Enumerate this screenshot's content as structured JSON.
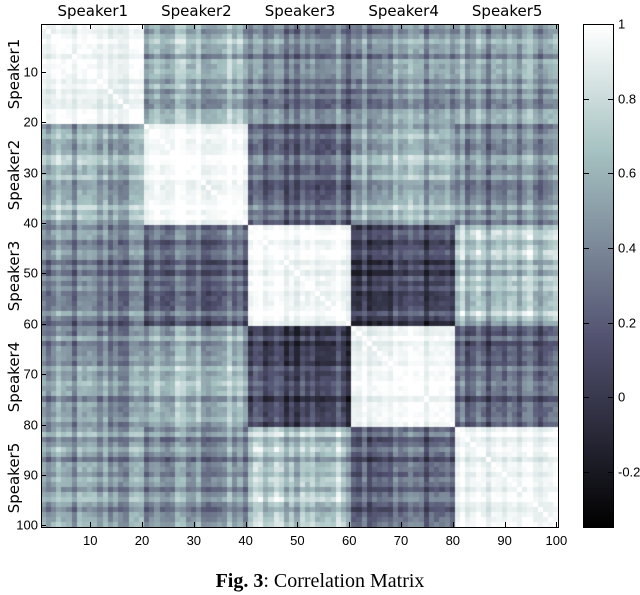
{
  "chart_data": {
    "type": "heatmap",
    "title": "",
    "caption_prefix": "Fig. 3",
    "caption_text": ": Correlation Matrix",
    "xlabel": "",
    "ylabel": "",
    "matrix_size": 100,
    "groups": [
      "Speaker1",
      "Speaker2",
      "Speaker3",
      "Speaker4",
      "Speaker5"
    ],
    "group_size": 20,
    "x_ticks": [
      10,
      20,
      30,
      40,
      50,
      60,
      70,
      80,
      90,
      100
    ],
    "y_ticks": [
      10,
      20,
      30,
      40,
      50,
      60,
      70,
      80,
      90,
      100
    ],
    "block_mean_correlation": [
      [
        0.92,
        0.55,
        0.35,
        0.45,
        0.45
      ],
      [
        0.55,
        0.97,
        0.25,
        0.6,
        0.4
      ],
      [
        0.35,
        0.25,
        0.96,
        0.1,
        0.65
      ],
      [
        0.45,
        0.6,
        0.1,
        0.97,
        0.25
      ],
      [
        0.45,
        0.4,
        0.65,
        0.25,
        0.92
      ]
    ],
    "colorbar": {
      "range": [
        -0.35,
        1.0
      ],
      "ticks": [
        "1",
        "0.8",
        "0.6",
        "0.4",
        "0.2",
        "0",
        "-0.2"
      ],
      "tick_values": [
        1,
        0.8,
        0.6,
        0.4,
        0.2,
        0,
        -0.2
      ],
      "colormap": "bone",
      "colors": {
        "low": "#000000",
        "mid_low": "#4a4a66",
        "mid": "#8fa8a8",
        "high": "#ffffff"
      }
    }
  },
  "figure": {
    "caption_bold": "Fig. 3",
    "caption_rest": ": Correlation Matrix"
  }
}
